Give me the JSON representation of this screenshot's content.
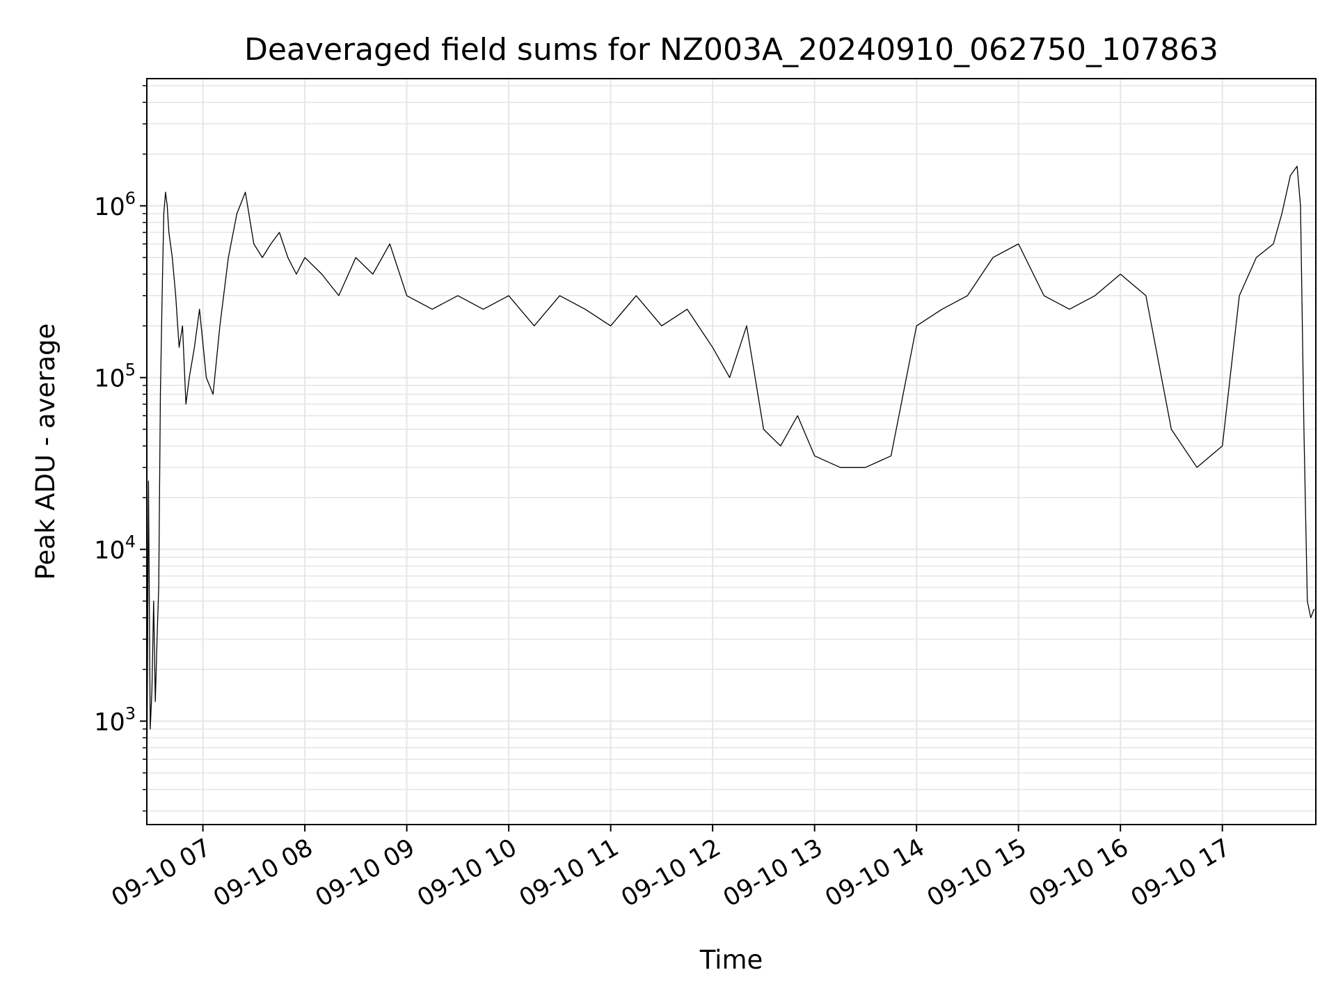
{
  "chart_data": {
    "type": "line",
    "title": "Deaveraged field sums for NZ003A_20240910_062750_107863",
    "xlabel": "Time",
    "ylabel": "Peak ADU - average",
    "y_scale": "log",
    "ylim": [
      250,
      5500000
    ],
    "xlim": [
      "2024-09-10 06:27",
      "2024-09-10 17:55"
    ],
    "grid": true,
    "line_color": "#000000",
    "grid_color": "#e6e6e6",
    "x_ticks": [
      {
        "value": "2024-09-10 07:00",
        "label": "09-10 07"
      },
      {
        "value": "2024-09-10 08:00",
        "label": "09-10 08"
      },
      {
        "value": "2024-09-10 09:00",
        "label": "09-10 09"
      },
      {
        "value": "2024-09-10 10:00",
        "label": "09-10 10"
      },
      {
        "value": "2024-09-10 11:00",
        "label": "09-10 11"
      },
      {
        "value": "2024-09-10 12:00",
        "label": "09-10 12"
      },
      {
        "value": "2024-09-10 13:00",
        "label": "09-10 13"
      },
      {
        "value": "2024-09-10 14:00",
        "label": "09-10 14"
      },
      {
        "value": "2024-09-10 15:00",
        "label": "09-10 15"
      },
      {
        "value": "2024-09-10 16:00",
        "label": "09-10 16"
      },
      {
        "value": "2024-09-10 17:00",
        "label": "09-10 17"
      }
    ],
    "y_ticks": [
      {
        "value": 1000,
        "base": "10",
        "exp": "3"
      },
      {
        "value": 10000,
        "base": "10",
        "exp": "4"
      },
      {
        "value": 100000,
        "base": "10",
        "exp": "5"
      },
      {
        "value": 1000000,
        "base": "10",
        "exp": "6"
      }
    ],
    "series": [
      {
        "x": [
          "2024-09-10 06:27",
          "2024-09-10 06:28",
          "2024-09-10 06:29",
          "2024-09-10 06:30",
          "2024-09-10 06:31",
          "2024-09-10 06:32",
          "2024-09-10 06:33",
          "2024-09-10 06:34",
          "2024-09-10 06:35",
          "2024-09-10 06:36",
          "2024-09-10 06:37",
          "2024-09-10 06:38",
          "2024-09-10 06:39",
          "2024-09-10 06:40",
          "2024-09-10 06:42",
          "2024-09-10 06:44",
          "2024-09-10 06:46",
          "2024-09-10 06:48",
          "2024-09-10 06:50",
          "2024-09-10 06:52",
          "2024-09-10 06:55",
          "2024-09-10 06:58",
          "2024-09-10 07:02",
          "2024-09-10 07:06",
          "2024-09-10 07:10",
          "2024-09-10 07:15",
          "2024-09-10 07:20",
          "2024-09-10 07:25",
          "2024-09-10 07:30",
          "2024-09-10 07:35",
          "2024-09-10 07:40",
          "2024-09-10 07:45",
          "2024-09-10 07:50",
          "2024-09-10 07:55",
          "2024-09-10 08:00",
          "2024-09-10 08:10",
          "2024-09-10 08:20",
          "2024-09-10 08:30",
          "2024-09-10 08:40",
          "2024-09-10 08:50",
          "2024-09-10 09:00",
          "2024-09-10 09:15",
          "2024-09-10 09:30",
          "2024-09-10 09:45",
          "2024-09-10 10:00",
          "2024-09-10 10:15",
          "2024-09-10 10:30",
          "2024-09-10 10:45",
          "2024-09-10 11:00",
          "2024-09-10 11:15",
          "2024-09-10 11:30",
          "2024-09-10 11:45",
          "2024-09-10 12:00",
          "2024-09-10 12:10",
          "2024-09-10 12:20",
          "2024-09-10 12:30",
          "2024-09-10 12:40",
          "2024-09-10 12:50",
          "2024-09-10 13:00",
          "2024-09-10 13:15",
          "2024-09-10 13:30",
          "2024-09-10 13:45",
          "2024-09-10 14:00",
          "2024-09-10 14:15",
          "2024-09-10 14:30",
          "2024-09-10 14:45",
          "2024-09-10 15:00",
          "2024-09-10 15:15",
          "2024-09-10 15:30",
          "2024-09-10 15:45",
          "2024-09-10 16:00",
          "2024-09-10 16:15",
          "2024-09-10 16:30",
          "2024-09-10 16:45",
          "2024-09-10 17:00",
          "2024-09-10 17:10",
          "2024-09-10 17:20",
          "2024-09-10 17:30",
          "2024-09-10 17:35",
          "2024-09-10 17:40",
          "2024-09-10 17:44",
          "2024-09-10 17:46",
          "2024-09-10 17:48",
          "2024-09-10 17:50",
          "2024-09-10 17:52",
          "2024-09-10 17:54"
        ],
        "y": [
          380,
          25000,
          900,
          1500,
          5000,
          1300,
          3000,
          6000,
          80000,
          300000,
          900000,
          1200000,
          1000000,
          700000,
          500000,
          300000,
          150000,
          200000,
          70000,
          100000,
          150000,
          250000,
          100000,
          80000,
          200000,
          500000,
          900000,
          1200000,
          600000,
          500000,
          600000,
          700000,
          500000,
          400000,
          500000,
          400000,
          300000,
          500000,
          400000,
          600000,
          300000,
          250000,
          300000,
          250000,
          300000,
          200000,
          300000,
          250000,
          200000,
          300000,
          200000,
          250000,
          150000,
          100000,
          200000,
          50000,
          40000,
          60000,
          35000,
          30000,
          30000,
          35000,
          200000,
          250000,
          300000,
          500000,
          600000,
          300000,
          250000,
          300000,
          400000,
          300000,
          50000,
          30000,
          40000,
          300000,
          500000,
          600000,
          900000,
          1500000,
          1700000,
          1000000,
          50000,
          5000,
          4000,
          4500
        ]
      }
    ]
  }
}
